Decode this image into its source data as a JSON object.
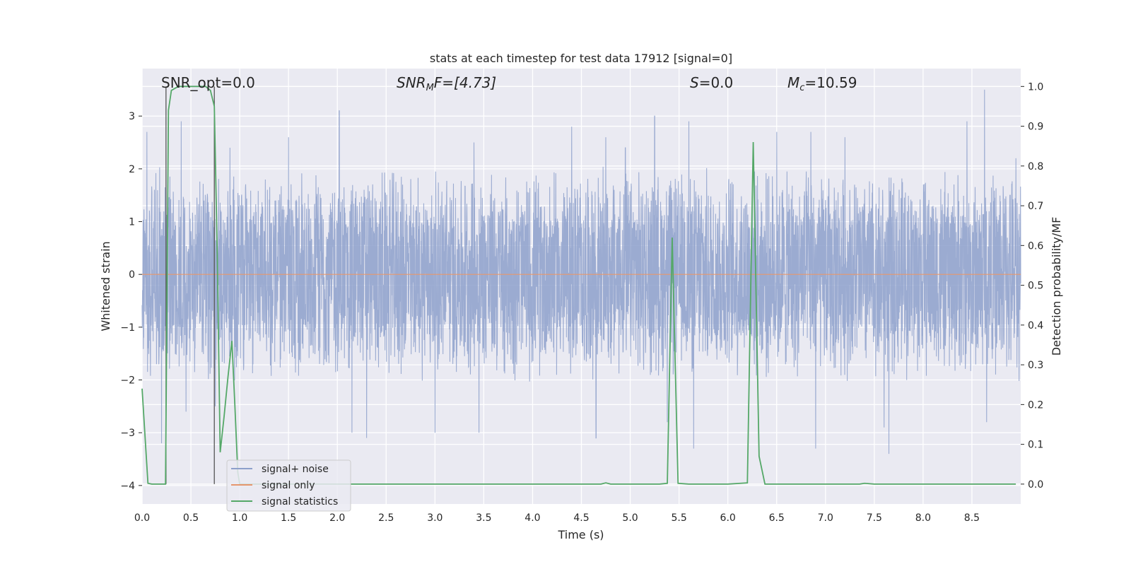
{
  "chart_data": {
    "type": "line",
    "title": "stats at each timestep for test data 17912 [signal=0]",
    "xlabel": "Time (s)",
    "ylabel": "Whitened strain",
    "y2label": "Detection probability/MF",
    "xlim": [
      0,
      9.0
    ],
    "ylim": [
      -4.35,
      3.9
    ],
    "y2lim": [
      -0.05,
      1.045
    ],
    "xticks": [
      "0.0",
      "0.5",
      "1.0",
      "1.5",
      "2.0",
      "2.5",
      "3.0",
      "3.5",
      "4.0",
      "4.5",
      "5.0",
      "5.5",
      "6.0",
      "6.5",
      "7.0",
      "7.5",
      "8.0",
      "8.5"
    ],
    "yticks": [
      "−4",
      "−3",
      "−2",
      "−1",
      "0",
      "1",
      "2",
      "3"
    ],
    "y2ticks": [
      "0.0",
      "0.1",
      "0.2",
      "0.3",
      "0.4",
      "0.5",
      "0.6",
      "0.7",
      "0.8",
      "0.9",
      "1.0"
    ],
    "grid": true,
    "legend_position": "lower-left",
    "annotations": {
      "snr_opt": "SNR_opt=0.0",
      "snr_mf_prefix": "SNR",
      "snr_mf_sub": "M",
      "snr_mf_rest": "F=[4.73]",
      "s_var": "S",
      "s_rest": "=0.0",
      "mc_var": "M",
      "mc_sub": "c",
      "mc_rest": "=10.59"
    },
    "series": [
      {
        "name": "signal+ noise",
        "axis": "left",
        "color": "#8da0cb",
        "envelope": {
          "typical_peak": 1.8,
          "spikes": [
            [
              0.05,
              2.7
            ],
            [
              0.2,
              -3.2
            ],
            [
              0.4,
              2.9
            ],
            [
              0.45,
              -2.6
            ],
            [
              0.75,
              -2.5
            ],
            [
              0.9,
              2.4
            ],
            [
              1.5,
              2.6
            ],
            [
              2.02,
              3.1
            ],
            [
              2.15,
              -3.0
            ],
            [
              2.3,
              -3.1
            ],
            [
              3.0,
              -3.0
            ],
            [
              3.4,
              2.5
            ],
            [
              3.45,
              -3.0
            ],
            [
              4.4,
              2.8
            ],
            [
              4.65,
              -3.1
            ],
            [
              4.75,
              2.6
            ],
            [
              4.95,
              2.4
            ],
            [
              5.25,
              3.0
            ],
            [
              5.38,
              -2.8
            ],
            [
              5.6,
              2.9
            ],
            [
              5.65,
              -3.3
            ],
            [
              6.5,
              2.7
            ],
            [
              6.85,
              2.7
            ],
            [
              6.9,
              -3.3
            ],
            [
              7.2,
              2.6
            ],
            [
              7.6,
              -2.9
            ],
            [
              7.65,
              -3.4
            ],
            [
              8.45,
              2.9
            ],
            [
              8.63,
              3.5
            ],
            [
              8.65,
              -2.8
            ],
            [
              8.95,
              2.2
            ]
          ]
        }
      },
      {
        "name": "signal only",
        "axis": "left",
        "color": "#e5966d",
        "x": [
          0,
          9.0
        ],
        "y": [
          0,
          0
        ]
      },
      {
        "name": "signal statistics",
        "axis": "right",
        "color": "#55a868",
        "x": [
          0.0,
          0.06,
          0.1,
          0.2,
          0.24,
          0.27,
          0.3,
          0.37,
          0.45,
          0.55,
          0.65,
          0.7,
          0.74,
          0.77,
          0.8,
          0.84,
          0.88,
          0.92,
          0.95,
          0.98,
          1.0,
          1.1,
          1.5,
          2.0,
          3.0,
          4.0,
          4.6,
          4.7,
          4.75,
          4.8,
          4.9,
          5.0,
          5.3,
          5.38,
          5.43,
          5.49,
          5.6,
          6.0,
          6.2,
          6.26,
          6.32,
          6.38,
          6.5,
          7.0,
          7.35,
          7.4,
          7.5,
          8.0,
          8.5,
          8.95
        ],
        "y": [
          0.24,
          0.002,
          0.0,
          0.0,
          0.0,
          0.94,
          0.99,
          1.0,
          1.0,
          1.0,
          1.0,
          0.99,
          0.95,
          0.58,
          0.08,
          0.17,
          0.27,
          0.36,
          0.2,
          0.03,
          0.0,
          0.0,
          0.0,
          0.0,
          0.0,
          0.0,
          0.0,
          0.0,
          0.003,
          0.0,
          0.0,
          0.0,
          0.0,
          0.002,
          0.62,
          0.002,
          0.0,
          0.0,
          0.003,
          0.86,
          0.07,
          0.0,
          0.0,
          0.0,
          0.0,
          0.002,
          0.0,
          0.0,
          0.0,
          0.0
        ]
      }
    ],
    "vertical_markers": [
      {
        "x": 0.245,
        "axis_y_top": 1.0,
        "axis_y_bottom": 0.0
      },
      {
        "x": 0.74,
        "axis_y_top": 1.0,
        "axis_y_bottom": 0.0
      }
    ]
  }
}
